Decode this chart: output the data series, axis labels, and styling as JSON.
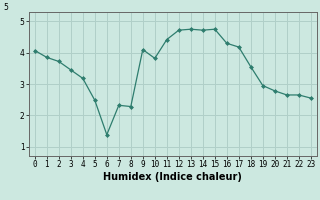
{
  "x": [
    0,
    1,
    2,
    3,
    4,
    5,
    6,
    7,
    8,
    9,
    10,
    11,
    12,
    13,
    14,
    15,
    16,
    17,
    18,
    19,
    20,
    21,
    22,
    23
  ],
  "y": [
    4.07,
    3.85,
    3.72,
    3.45,
    3.18,
    2.48,
    1.38,
    2.32,
    2.28,
    4.1,
    3.82,
    4.42,
    4.72,
    4.75,
    4.72,
    4.75,
    4.3,
    4.18,
    3.55,
    2.95,
    2.78,
    2.65,
    2.65,
    2.55
  ],
  "line_color": "#2e7d6e",
  "marker": "D",
  "marker_size": 2.0,
  "bg_color": "#cce8e0",
  "grid_color": "#b0cfc8",
  "axis_color": "#666666",
  "xlabel": "Humidex (Indice chaleur)",
  "xlabel_fontsize": 7,
  "yticks": [
    1,
    2,
    3,
    4,
    5
  ],
  "xticks": [
    0,
    1,
    2,
    3,
    4,
    5,
    6,
    7,
    8,
    9,
    10,
    11,
    12,
    13,
    14,
    15,
    16,
    17,
    18,
    19,
    20,
    21,
    22,
    23
  ],
  "xlim": [
    -0.5,
    23.5
  ],
  "ylim": [
    0.7,
    5.3
  ],
  "ytop_label": "5",
  "tick_fontsize": 5.5,
  "linewidth": 0.9
}
